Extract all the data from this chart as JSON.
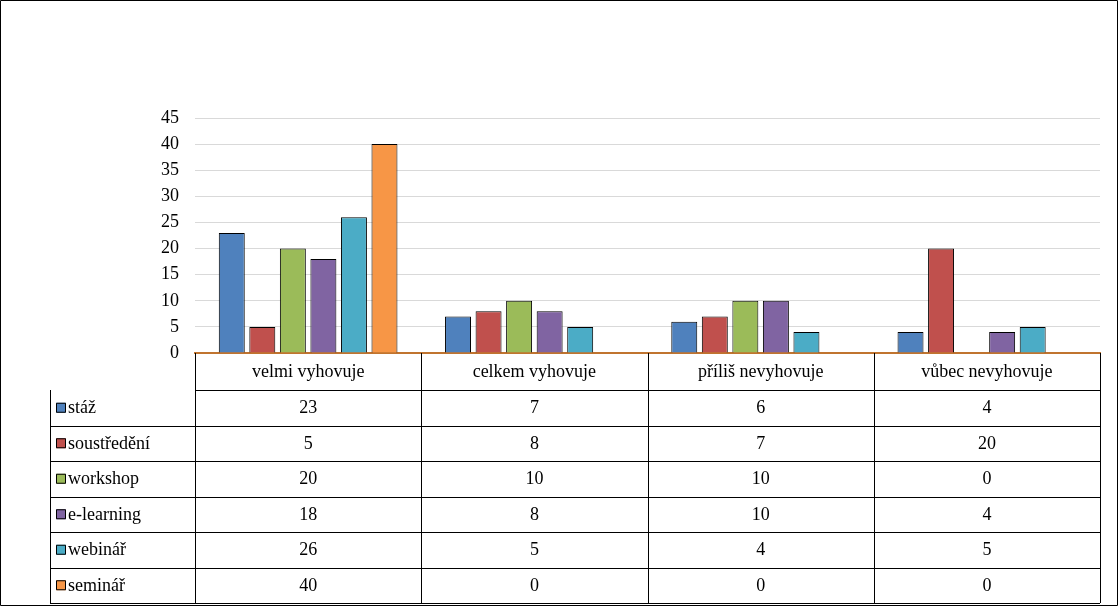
{
  "chart_data": {
    "type": "bar",
    "categories": [
      "velmi vyhovuje",
      "celkem vyhovuje",
      "příliš nevyhovuje",
      "vůbec nevyhovuje"
    ],
    "series": [
      {
        "name": "stáž",
        "color": "#4f81bd",
        "values": [
          23,
          7,
          6,
          4
        ]
      },
      {
        "name": "soustředění",
        "color": "#c0504d",
        "values": [
          5,
          8,
          7,
          20
        ]
      },
      {
        "name": "workshop",
        "color": "#9bbb59",
        "values": [
          20,
          10,
          10,
          0
        ]
      },
      {
        "name": "e-learning",
        "color": "#8064a2",
        "values": [
          18,
          8,
          10,
          4
        ]
      },
      {
        "name": "webinář",
        "color": "#4bacc6",
        "values": [
          26,
          5,
          4,
          5
        ]
      },
      {
        "name": "seminář",
        "color": "#f79646",
        "values": [
          40,
          0,
          0,
          0
        ]
      }
    ],
    "ylim": [
      0,
      45
    ],
    "yticks": [
      0,
      5,
      10,
      15,
      20,
      25,
      30,
      35,
      40,
      45
    ],
    "grid": "y",
    "legend": "bottom",
    "data_labels": true
  }
}
